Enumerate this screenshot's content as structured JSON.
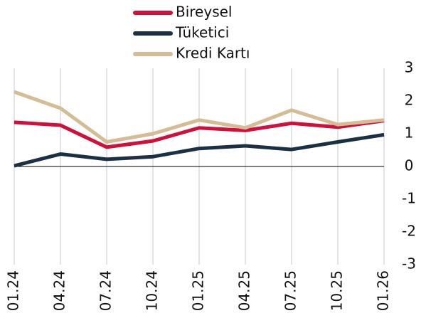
{
  "chart_data": {
    "type": "line",
    "categories": [
      "01.24",
      "04.24",
      "07.24",
      "10.24",
      "01.25",
      "04.25",
      "07.25",
      "10.25",
      "01.26"
    ],
    "series": [
      {
        "name": "Bireysel",
        "color": "#d0103a",
        "values": [
          1.35,
          1.26,
          0.59,
          0.78,
          1.18,
          1.1,
          1.32,
          1.2,
          1.4
        ]
      },
      {
        "name": "Tüketici",
        "color": "#1c3044",
        "values": [
          0.02,
          0.38,
          0.22,
          0.3,
          0.55,
          0.63,
          0.52,
          0.75,
          0.97
        ]
      },
      {
        "name": "Kredi Kartı",
        "color": "#d4bc94",
        "values": [
          2.28,
          1.78,
          0.75,
          1.0,
          1.42,
          1.18,
          1.72,
          1.28,
          1.42
        ]
      }
    ],
    "ylim": [
      -3,
      3
    ],
    "yticks": [
      3,
      2,
      1,
      0,
      -1,
      -2,
      -3
    ],
    "grid": true
  }
}
